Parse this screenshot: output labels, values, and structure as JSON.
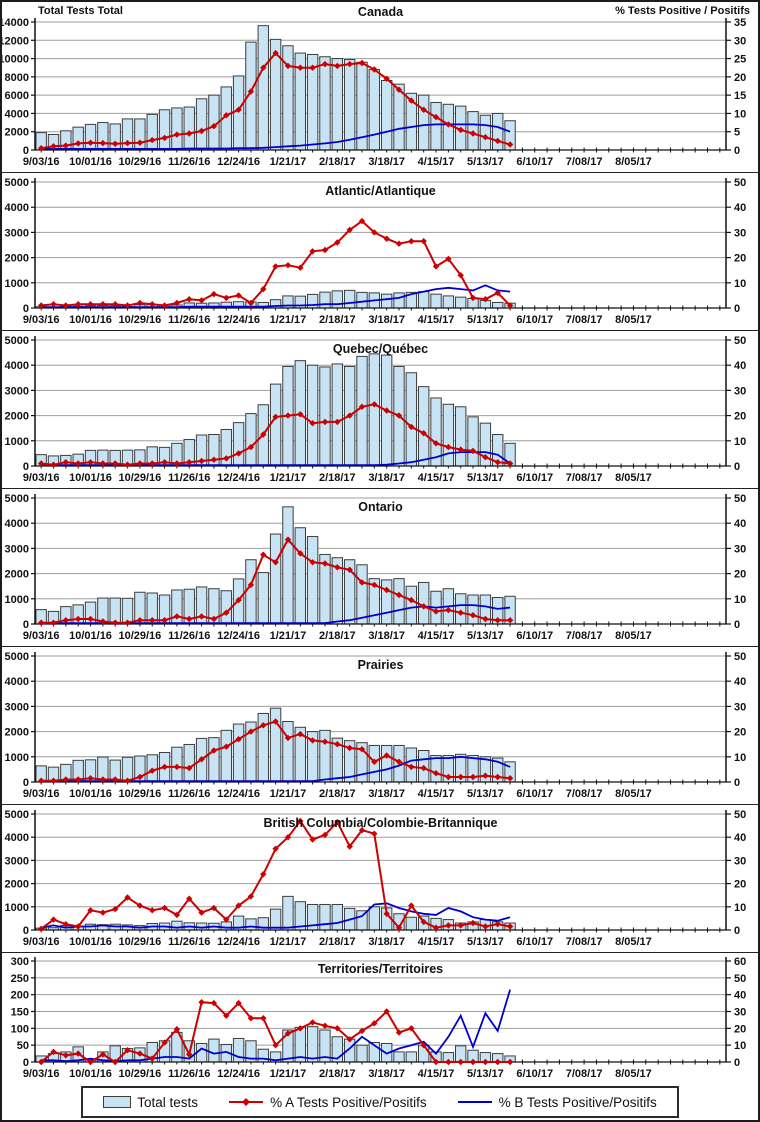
{
  "page": {
    "left_axis_title": "Total Tests Total",
    "right_axis_title": "% Tests Positive / Positifs"
  },
  "colors": {
    "bar_fill": "#C8E4F4",
    "bar_stroke": "#3d3d3d",
    "flu_a_red": "#CC0000",
    "flu_b_blue": "#0000CC",
    "grid": "#9e9e9e",
    "axis": "#111111",
    "text": "#111111"
  },
  "legend": {
    "items": [
      {
        "label": "Total tests",
        "swatch": "bar"
      },
      {
        "label": "% A Tests Positive/Positifs",
        "swatch": "line-diamond"
      },
      {
        "label": "% B Tests Positive/Positifs",
        "swatch": "line"
      }
    ]
  },
  "x_axis": {
    "tick_labels": [
      "9/03/16",
      "10/01/16",
      "10/29/16",
      "11/26/16",
      "12/24/16",
      "1/21/17",
      "2/18/17",
      "3/18/17",
      "4/15/17",
      "5/13/17",
      "6/10/17",
      "7/08/17",
      "8/05/17"
    ],
    "weeks_between_labels": 4,
    "total_week_slots": 56,
    "data_weeks": 39
  },
  "chart_data": [
    {
      "id": "canada",
      "type": "bar",
      "title": "Canada",
      "left_ylabel": "Total Tests Total",
      "right_ylabel": "% Tests Positive / Positifs",
      "left_ylim": [
        0,
        14000
      ],
      "left_step": 2000,
      "right_ylim": [
        0,
        35
      ],
      "right_step": 5,
      "series": [
        {
          "name": "Total tests",
          "axis": "left",
          "kind": "bar",
          "values": [
            1900,
            1700,
            2100,
            2500,
            2800,
            3000,
            2850,
            3400,
            3400,
            3900,
            4400,
            4600,
            4700,
            5600,
            6000,
            6900,
            8100,
            11800,
            13600,
            12100,
            11400,
            10600,
            10450,
            10200,
            10000,
            9900,
            9600,
            8800,
            7600,
            7200,
            6200,
            6000,
            5200,
            5000,
            4800,
            4200,
            3800,
            4000,
            3200
          ]
        },
        {
          "name": "% A Tests Positive/Positifs",
          "axis": "right",
          "kind": "line-diamond",
          "values": [
            0.5,
            1,
            1.2,
            1.8,
            2,
            1.9,
            1.7,
            1.9,
            2,
            2.7,
            3.3,
            4.2,
            4.5,
            5.2,
            6.5,
            9.5,
            11,
            16,
            22.5,
            26.5,
            23,
            22.5,
            22.5,
            23.5,
            23,
            23.5,
            23.8,
            22,
            19.5,
            16.5,
            13.5,
            11,
            9,
            7,
            5.5,
            4.5,
            3.5,
            2.5,
            1.5
          ]
        },
        {
          "name": "% B Tests Positive/Positifs",
          "axis": "right",
          "kind": "line",
          "values": [
            0.3,
            0.3,
            0.3,
            0.3,
            0.3,
            0.3,
            0.3,
            0.3,
            0.3,
            0.3,
            0.3,
            0.3,
            0.4,
            0.4,
            0.4,
            0.4,
            0.5,
            0.5,
            0.6,
            0.8,
            1,
            1.2,
            1.5,
            1.8,
            2.2,
            2.8,
            3.5,
            4.2,
            5,
            5.8,
            6.3,
            6.8,
            7,
            7,
            7,
            7,
            6.8,
            6.3,
            5
          ]
        }
      ]
    },
    {
      "id": "atlantic",
      "type": "bar",
      "title": "Atlantic/Atlantique",
      "left_ylim": [
        0,
        5000
      ],
      "left_step": 1000,
      "right_ylim": [
        0,
        50
      ],
      "right_step": 10,
      "series": [
        {
          "name": "Total tests",
          "axis": "left",
          "kind": "bar",
          "values": [
            50,
            40,
            60,
            70,
            90,
            100,
            90,
            60,
            130,
            140,
            110,
            120,
            200,
            190,
            200,
            230,
            250,
            240,
            220,
            330,
            480,
            470,
            540,
            630,
            680,
            700,
            620,
            600,
            550,
            600,
            620,
            650,
            550,
            480,
            430,
            380,
            300,
            220,
            190
          ]
        },
        {
          "name": "% A Tests Positive/Positifs",
          "axis": "right",
          "kind": "line-diamond",
          "values": [
            1,
            1.5,
            1,
            1.5,
            1.5,
            1.5,
            1.5,
            1,
            2,
            1.5,
            1,
            2,
            3.5,
            3,
            5.5,
            4,
            5,
            2,
            7.5,
            16.5,
            17,
            16,
            22.5,
            23,
            26,
            31,
            34.5,
            30,
            27.5,
            25.5,
            26.5,
            26.5,
            16.5,
            19.5,
            13,
            4,
            3.5,
            6,
            1
          ]
        },
        {
          "name": "% B Tests Positive/Positifs",
          "axis": "right",
          "kind": "line",
          "values": [
            0.3,
            0.3,
            0.3,
            0.3,
            0.3,
            0.3,
            0.3,
            0.3,
            0.3,
            0.3,
            0.3,
            0.3,
            0.5,
            0.5,
            0.5,
            0.5,
            0.5,
            0.5,
            0.5,
            0.8,
            1,
            1,
            1.2,
            1.5,
            1.5,
            2,
            2.5,
            3,
            3.5,
            4,
            5.5,
            6.5,
            7.5,
            8,
            7.5,
            7,
            9,
            7,
            6.5
          ]
        }
      ]
    },
    {
      "id": "quebec",
      "type": "bar",
      "title": "Quebec/Québec",
      "left_ylim": [
        0,
        5000
      ],
      "left_step": 1000,
      "right_ylim": [
        0,
        50
      ],
      "right_step": 10,
      "series": [
        {
          "name": "Total tests",
          "axis": "left",
          "kind": "bar",
          "values": [
            450,
            400,
            420,
            470,
            620,
            630,
            620,
            630,
            640,
            760,
            740,
            900,
            1050,
            1230,
            1250,
            1450,
            1720,
            2080,
            2430,
            3250,
            3950,
            4180,
            4000,
            3930,
            4050,
            3950,
            4350,
            4450,
            4400,
            3950,
            3700,
            3150,
            2700,
            2450,
            2350,
            1950,
            1700,
            1250,
            900
          ]
        },
        {
          "name": "% A Tests Positive/Positifs",
          "axis": "right",
          "kind": "line-diamond",
          "values": [
            1,
            0.5,
            1.5,
            1,
            1.5,
            1,
            1,
            0.5,
            1,
            1,
            1.5,
            1,
            1.5,
            2,
            2.5,
            3,
            5,
            7.5,
            12.5,
            19.5,
            20,
            20.5,
            17,
            17.5,
            17.5,
            20,
            23.5,
            24.5,
            22,
            20,
            15.5,
            13,
            9,
            7.5,
            6.5,
            6,
            3.5,
            1.5,
            1
          ]
        },
        {
          "name": "% B Tests Positive/Positifs",
          "axis": "right",
          "kind": "line",
          "values": [
            0.3,
            0.3,
            0.3,
            0.3,
            0.3,
            0.3,
            0.3,
            0.3,
            0.3,
            0.3,
            0.3,
            0.3,
            0.3,
            0.3,
            0.3,
            0.3,
            0.3,
            0.3,
            0.3,
            0.3,
            0.3,
            0.3,
            0.3,
            0.3,
            0.3,
            0.3,
            0.3,
            0.3,
            0.5,
            1,
            1.5,
            2.5,
            3.5,
            5,
            5.5,
            5.5,
            5.5,
            4.5,
            1
          ]
        }
      ]
    },
    {
      "id": "ontario",
      "type": "bar",
      "title": "Ontario",
      "left_ylim": [
        0,
        5000
      ],
      "left_step": 1000,
      "right_ylim": [
        0,
        50
      ],
      "right_step": 10,
      "series": [
        {
          "name": "Total tests",
          "axis": "left",
          "kind": "bar",
          "values": [
            570,
            500,
            690,
            760,
            870,
            1030,
            1030,
            1020,
            1260,
            1230,
            1150,
            1350,
            1380,
            1470,
            1400,
            1320,
            1790,
            2550,
            2040,
            3570,
            4650,
            3820,
            3470,
            2760,
            2630,
            2550,
            2350,
            1800,
            1750,
            1800,
            1500,
            1650,
            1300,
            1400,
            1200,
            1150,
            1150,
            1050,
            1100
          ]
        },
        {
          "name": "% A Tests Positive/Positifs",
          "axis": "right",
          "kind": "line-diamond",
          "values": [
            0.5,
            0.5,
            1.5,
            2,
            2,
            1,
            0.5,
            0.5,
            1.5,
            1.5,
            1.5,
            3,
            2,
            3,
            2,
            4.5,
            9.5,
            15.5,
            27.5,
            24.5,
            33.5,
            28,
            24.5,
            24,
            22.5,
            21.5,
            16.5,
            15.5,
            13.5,
            11.5,
            9.5,
            7,
            5,
            5.5,
            4.5,
            3.5,
            2,
            1.5,
            1.5
          ]
        },
        {
          "name": "% B Tests Positive/Positifs",
          "axis": "right",
          "kind": "line",
          "values": [
            0.3,
            0.3,
            0.3,
            0.3,
            0.3,
            0.3,
            0.3,
            0.3,
            0.3,
            0.3,
            0.3,
            0.3,
            0.3,
            0.3,
            0.3,
            0.3,
            0.3,
            0.3,
            0.3,
            0.3,
            0.3,
            0.3,
            0.3,
            0.3,
            1,
            1.5,
            2.5,
            3.5,
            4.5,
            5.5,
            6.5,
            7,
            6.5,
            7,
            7.5,
            7.5,
            7,
            6,
            6.5
          ]
        }
      ]
    },
    {
      "id": "prairies",
      "type": "bar",
      "title": "Prairies",
      "left_ylim": [
        0,
        5000
      ],
      "left_step": 1000,
      "right_ylim": [
        0,
        50
      ],
      "right_step": 10,
      "series": [
        {
          "name": "Total tests",
          "axis": "left",
          "kind": "bar",
          "values": [
            640,
            590,
            700,
            860,
            880,
            990,
            870,
            980,
            1030,
            1080,
            1170,
            1380,
            1490,
            1730,
            1760,
            2050,
            2300,
            2380,
            2720,
            2930,
            2400,
            2170,
            2000,
            2050,
            1740,
            1640,
            1560,
            1450,
            1450,
            1450,
            1350,
            1250,
            1050,
            1050,
            1100,
            1050,
            1000,
            950,
            800
          ]
        },
        {
          "name": "% A Tests Positive/Positifs",
          "axis": "right",
          "kind": "line-diamond",
          "values": [
            0.5,
            0.5,
            1,
            1,
            1.5,
            1,
            1,
            0.5,
            2,
            4.5,
            6,
            6,
            5.5,
            9,
            12.5,
            14,
            17,
            20,
            22.5,
            24,
            17.5,
            19,
            16.5,
            16,
            15,
            13.5,
            13,
            8,
            10.5,
            8,
            6,
            5.5,
            3.5,
            2,
            2,
            2,
            2.5,
            2,
            1.5
          ]
        },
        {
          "name": "% B Tests Positive/Positifs",
          "axis": "right",
          "kind": "line",
          "values": [
            0.3,
            0.3,
            0.3,
            0.3,
            0.3,
            0.3,
            0.3,
            0.3,
            0.3,
            0.3,
            0.3,
            0.3,
            0.3,
            0.3,
            0.3,
            0.3,
            0.3,
            0.3,
            0.3,
            0.3,
            0.3,
            0.3,
            0.3,
            1,
            1.5,
            2,
            3,
            4,
            5,
            6.5,
            8.5,
            9,
            9.5,
            9.5,
            10,
            9.5,
            9,
            8,
            6
          ]
        }
      ]
    },
    {
      "id": "british-columbia",
      "type": "bar",
      "title": "British Columbia/Colombie-Britannique",
      "left_ylim": [
        0,
        5000
      ],
      "left_step": 1000,
      "right_ylim": [
        0,
        50
      ],
      "right_step": 10,
      "series": [
        {
          "name": "Total tests",
          "axis": "left",
          "kind": "bar",
          "values": [
            80,
            100,
            190,
            160,
            250,
            230,
            250,
            220,
            190,
            280,
            300,
            380,
            310,
            300,
            290,
            350,
            600,
            480,
            530,
            900,
            1450,
            1220,
            1100,
            1100,
            1100,
            930,
            830,
            1000,
            950,
            700,
            550,
            600,
            500,
            450,
            300,
            350,
            450,
            350,
            300
          ]
        },
        {
          "name": "% A Tests Positive/Positifs",
          "axis": "right",
          "kind": "line-diamond",
          "values": [
            0.5,
            4.5,
            2.5,
            1.5,
            8.5,
            7.5,
            9,
            14,
            10.5,
            8.5,
            9.5,
            6.5,
            13.5,
            7.5,
            9.5,
            4.5,
            10.5,
            14.5,
            24,
            35,
            40,
            47,
            39,
            41,
            46.5,
            36,
            43,
            41.5,
            7,
            1,
            10.5,
            3.5,
            1,
            2,
            2,
            3,
            1.5,
            2.5,
            1.5
          ]
        },
        {
          "name": "% B Tests Positive/Positifs",
          "axis": "right",
          "kind": "line",
          "values": [
            1,
            2,
            1,
            1.5,
            1.5,
            2,
            1.5,
            1.5,
            1,
            1.5,
            1.5,
            1,
            1.5,
            1,
            1.5,
            1,
            1,
            1.5,
            1,
            1,
            1,
            1.5,
            2,
            2.5,
            3,
            4.5,
            6,
            11,
            11.5,
            9.5,
            8,
            7,
            6.5,
            9.5,
            8,
            5.5,
            4.5,
            4,
            5.5
          ]
        }
      ]
    },
    {
      "id": "territories",
      "type": "bar",
      "title": "Territories/Territoires",
      "left_ylim": [
        0,
        300
      ],
      "left_step": 50,
      "right_ylim": [
        0,
        60
      ],
      "right_step": 10,
      "series": [
        {
          "name": "Total tests",
          "axis": "left",
          "kind": "bar",
          "values": [
            18,
            25,
            30,
            45,
            8,
            30,
            48,
            40,
            42,
            58,
            63,
            88,
            63,
            55,
            68,
            52,
            70,
            63,
            38,
            30,
            95,
            103,
            105,
            95,
            75,
            68,
            50,
            58,
            55,
            30,
            30,
            50,
            30,
            28,
            48,
            35,
            28,
            25,
            18
          ]
        },
        {
          "name": "% A Tests Positive/Positifs",
          "axis": "right",
          "kind": "line-diamond",
          "values": [
            0,
            6,
            4,
            5,
            0,
            4.5,
            0,
            7,
            5,
            2,
            11.5,
            19.5,
            4.5,
            35.5,
            35,
            27.5,
            35,
            26,
            26,
            10,
            17,
            20,
            23.5,
            21.5,
            20,
            13.5,
            18.5,
            23,
            30,
            17.5,
            20,
            10,
            0,
            0,
            0,
            0,
            0,
            0,
            0
          ]
        },
        {
          "name": "% B Tests Positive/Positifs",
          "axis": "right",
          "kind": "line",
          "values": [
            1,
            1,
            0.5,
            1,
            2,
            1,
            0.5,
            1,
            1,
            2,
            3,
            3,
            2,
            8,
            5,
            6,
            3,
            2,
            2,
            1,
            2,
            3,
            2,
            3,
            2,
            8,
            15,
            10,
            5,
            8,
            10,
            12,
            5,
            15,
            27.5,
            9,
            29,
            18.5,
            43
          ]
        }
      ]
    }
  ]
}
